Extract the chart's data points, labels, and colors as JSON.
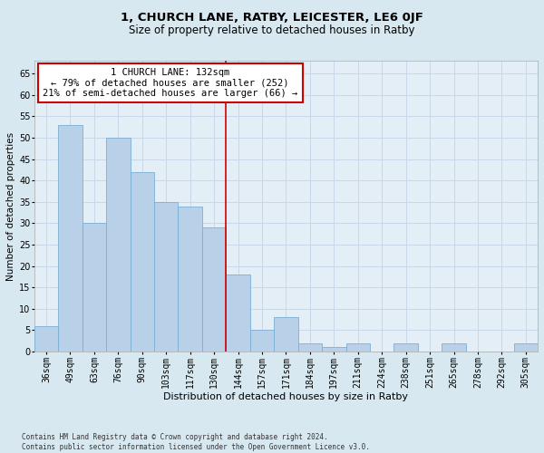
{
  "title": "1, CHURCH LANE, RATBY, LEICESTER, LE6 0JF",
  "subtitle": "Size of property relative to detached houses in Ratby",
  "xlabel": "Distribution of detached houses by size in Ratby",
  "ylabel": "Number of detached properties",
  "categories": [
    "36sqm",
    "49sqm",
    "63sqm",
    "76sqm",
    "90sqm",
    "103sqm",
    "117sqm",
    "130sqm",
    "144sqm",
    "157sqm",
    "171sqm",
    "184sqm",
    "197sqm",
    "211sqm",
    "224sqm",
    "238sqm",
    "251sqm",
    "265sqm",
    "278sqm",
    "292sqm",
    "305sqm"
  ],
  "values": [
    6,
    53,
    30,
    50,
    42,
    35,
    34,
    29,
    18,
    5,
    8,
    2,
    1,
    2,
    0,
    2,
    0,
    2,
    0,
    0,
    2
  ],
  "bar_color": "#b8d0e8",
  "bar_edge_color": "#7aafd4",
  "vline_x": 7.5,
  "vline_color": "#cc0000",
  "annotation_text": "1 CHURCH LANE: 132sqm\n← 79% of detached houses are smaller (252)\n21% of semi-detached houses are larger (66) →",
  "annotation_box_facecolor": "#ffffff",
  "annotation_box_edgecolor": "#cc0000",
  "ylim": [
    0,
    68
  ],
  "yticks": [
    0,
    5,
    10,
    15,
    20,
    25,
    30,
    35,
    40,
    45,
    50,
    55,
    60,
    65
  ],
  "grid_color": "#c8d8e8",
  "background_color": "#d8e8f0",
  "plot_bg_color": "#e4eef6",
  "footnote": "Contains HM Land Registry data © Crown copyright and database right 2024.\nContains public sector information licensed under the Open Government Licence v3.0.",
  "title_fontsize": 9.5,
  "subtitle_fontsize": 8.5,
  "xlabel_fontsize": 8,
  "ylabel_fontsize": 7.5,
  "tick_fontsize": 7,
  "annotation_fontsize": 7.5,
  "footnote_fontsize": 5.5
}
